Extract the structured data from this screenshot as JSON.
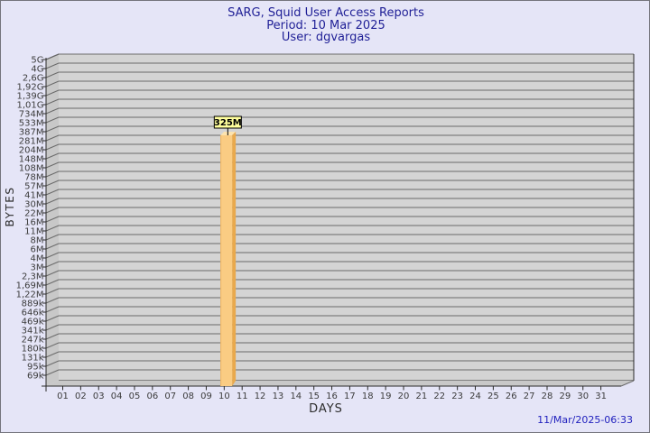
{
  "header": {
    "title": "SARG, Squid User Access Reports",
    "period": "Period: 10 Mar 2025",
    "user": "User: dgvargas"
  },
  "footer": {
    "timestamp": "11/Mar/2025-06:33"
  },
  "chart_data": {
    "type": "bar",
    "title": "SARG, Squid User Access Reports",
    "subtitle": "Period: 10 Mar 2025 — User: dgvargas",
    "xlabel": "DAYS",
    "ylabel": "BYTES",
    "grid": true,
    "legend": "none",
    "y_scale": "sarg-log",
    "x_categories": [
      "01",
      "02",
      "03",
      "04",
      "05",
      "06",
      "07",
      "08",
      "09",
      "10",
      "11",
      "12",
      "13",
      "14",
      "15",
      "16",
      "17",
      "18",
      "19",
      "20",
      "21",
      "22",
      "23",
      "24",
      "25",
      "26",
      "27",
      "28",
      "29",
      "30",
      "31"
    ],
    "y_tick_labels": [
      "5G",
      "4G",
      "2,6G",
      "1,92G",
      "1,39G",
      "1,01G",
      "734M",
      "533M",
      "387M",
      "281M",
      "204M",
      "148M",
      "108M",
      "78M",
      "57M",
      "41M",
      "30M",
      "22M",
      "16M",
      "11M",
      "8M",
      "6M",
      "4M",
      "3M",
      "2,3M",
      "1,69M",
      "1,22M",
      "889k",
      "646k",
      "469k",
      "341k",
      "247k",
      "180k",
      "131k",
      "95k",
      "69k"
    ],
    "values_bytes": [
      0,
      0,
      0,
      0,
      0,
      0,
      0,
      0,
      0,
      325000000,
      0,
      0,
      0,
      0,
      0,
      0,
      0,
      0,
      0,
      0,
      0,
      0,
      0,
      0,
      0,
      0,
      0,
      0,
      0,
      0,
      0
    ],
    "bars": [
      {
        "day": "10",
        "value_label": "325M",
        "value_bytes": 325000000,
        "grid_index": 8.6
      }
    ],
    "colors": {
      "page_bg": "#E5E5F7",
      "page_border": "#74747C",
      "title_text": "#1F1F96",
      "timestamp_text": "#2121BE",
      "tick_text": "#3C3C3C",
      "axis_line": "#2A2A2A",
      "gridline": "#6A6A6A",
      "plot_bg": "#D4D4D4",
      "wall": "#C8C8C8",
      "bar_front": "#FACC83",
      "bar_top": "#FCE3AF",
      "bar_side": "#E9A94D",
      "value_box_bg": "#FFFF9C",
      "value_box_border": "#000000"
    }
  }
}
